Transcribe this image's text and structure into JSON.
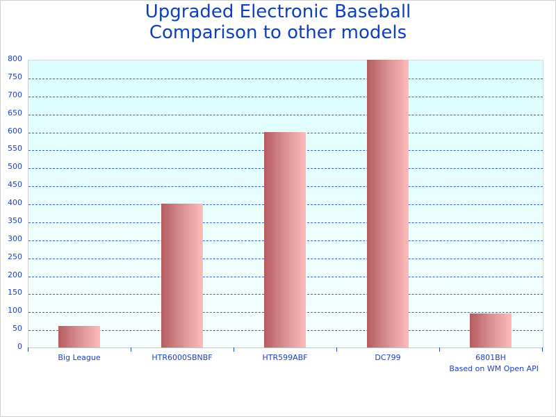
{
  "chart_data": {
    "type": "bar",
    "title": "Upgraded Electronic Baseball Comparison to other models",
    "title_lines": [
      "Upgraded Electronic Baseball",
      "Comparison to other models"
    ],
    "categories": [
      "Big League",
      "HTR6000SBNBF",
      "HTR599ABF",
      "DC799",
      "6801BH"
    ],
    "values": [
      60,
      400,
      600,
      800,
      95
    ],
    "xlabel": "",
    "ylabel": "",
    "ylim": [
      0,
      800
    ],
    "yticks": [
      0,
      50,
      100,
      150,
      200,
      250,
      300,
      350,
      400,
      450,
      500,
      550,
      600,
      650,
      700,
      750,
      800
    ],
    "grid": true,
    "legend": null,
    "annotation": "Based on WM Open API",
    "colors": {
      "title": "#0a3fc2",
      "axis_text": "#1a3fbf",
      "grid": "#2f5fc4",
      "bar_dark": "#b55c5f",
      "bar_light": "#fdbcbb",
      "plot_bg_top": "#dcfefe",
      "plot_bg_bottom": "#f7fefe"
    }
  },
  "header": {
    "line1": "Upgraded Electronic Baseball",
    "line2": "Comparison to other models"
  },
  "footer": {
    "credit": "Based on WM Open API"
  }
}
